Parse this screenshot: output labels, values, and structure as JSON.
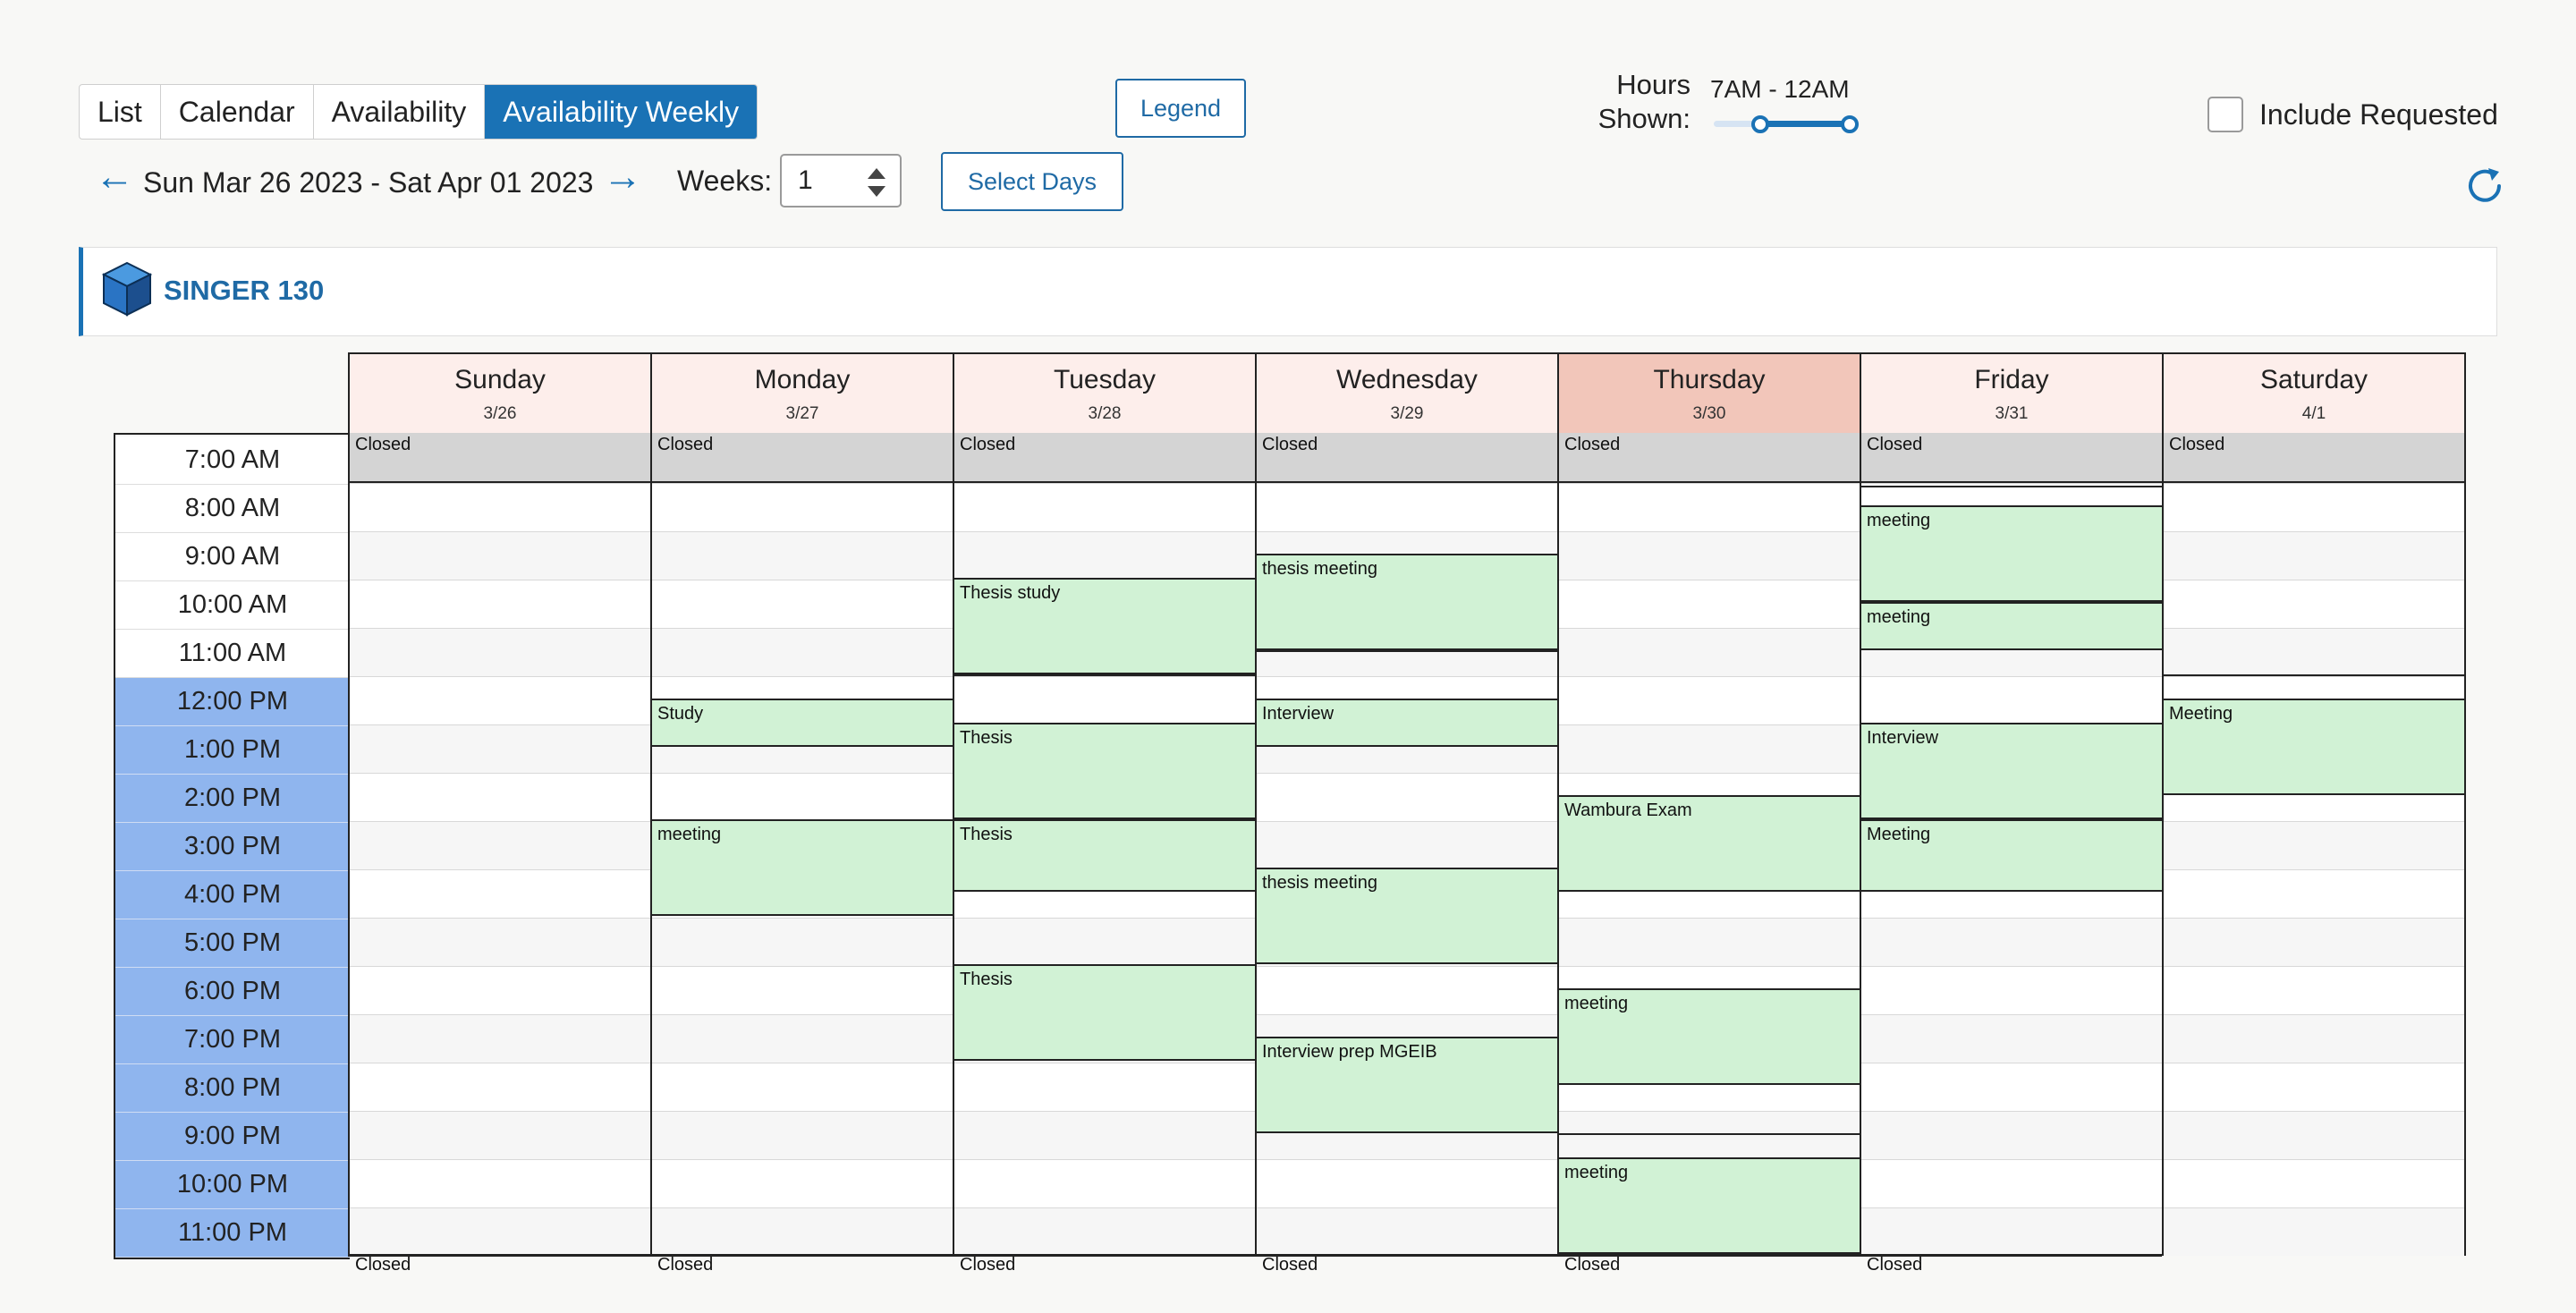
{
  "view_tabs": [
    "List",
    "Calendar",
    "Availability",
    "Availability Weekly"
  ],
  "active_tab": "Availability Weekly",
  "legend_label": "Legend",
  "hours": {
    "label_line1": "Hours",
    "label_line2": "Shown:",
    "range": "7AM - 12AM",
    "slider_start": 0.33,
    "slider_end": 1.0
  },
  "include_requested": {
    "label": "Include Requested",
    "checked": false
  },
  "nav": {
    "date_range": "Sun Mar 26 2023 - Sat Apr 01 2023",
    "prev_icon": "arrow-left-icon",
    "next_icon": "arrow-right-icon"
  },
  "weeks": {
    "label": "Weeks:",
    "value": "1"
  },
  "select_days_label": "Select Days",
  "refresh_icon": "refresh-icon",
  "resource": {
    "name": "SINGER 130",
    "icon": "cube-icon"
  },
  "times": [
    "7:00 AM",
    "8:00 AM",
    "9:00 AM",
    "10:00 AM",
    "11:00 AM",
    "12:00 PM",
    "1:00 PM",
    "2:00 PM",
    "3:00 PM",
    "4:00 PM",
    "5:00 PM",
    "6:00 PM",
    "7:00 PM",
    "8:00 PM",
    "9:00 PM",
    "10:00 PM",
    "11:00 PM"
  ],
  "closed_label": "Closed",
  "days": [
    {
      "name": "Sunday",
      "date": "3/26",
      "today": false,
      "closed_below": true,
      "events": []
    },
    {
      "name": "Monday",
      "date": "3/27",
      "today": false,
      "closed_below": true,
      "events": [
        {
          "title": "Study",
          "start": 12.5,
          "end": 13.5
        },
        {
          "title": "meeting",
          "start": 15.0,
          "end": 17.0
        }
      ]
    },
    {
      "name": "Tuesday",
      "date": "3/28",
      "today": false,
      "closed_below": true,
      "events": [
        {
          "title": "Thesis study",
          "start": 10.0,
          "end": 12.0
        },
        {
          "title": "Thesis",
          "start": 13.0,
          "end": 15.0
        },
        {
          "title": "Thesis",
          "start": 15.0,
          "end": 16.5
        },
        {
          "title": "Thesis",
          "start": 18.0,
          "end": 20.0
        }
      ],
      "gaps": [
        12.0
      ]
    },
    {
      "name": "Wednesday",
      "date": "3/29",
      "today": false,
      "closed_below": true,
      "events": [
        {
          "title": "thesis meeting",
          "start": 9.5,
          "end": 11.5
        },
        {
          "title": "Interview",
          "start": 12.5,
          "end": 13.5
        },
        {
          "title": "thesis meeting",
          "start": 16.0,
          "end": 18.0
        },
        {
          "title": "Interview prep MGEIB",
          "start": 19.5,
          "end": 21.5
        }
      ],
      "gaps": [
        11.5
      ]
    },
    {
      "name": "Thursday",
      "date": "3/30",
      "today": true,
      "closed_below": true,
      "events": [
        {
          "title": "Wambura Exam",
          "start": 14.5,
          "end": 16.5
        },
        {
          "title": "meeting",
          "start": 18.5,
          "end": 20.5
        },
        {
          "title": "meeting",
          "start": 22.0,
          "end": 24.0
        }
      ],
      "gaps": [
        21.5
      ]
    },
    {
      "name": "Friday",
      "date": "3/31",
      "today": false,
      "closed_below": true,
      "events": [
        {
          "title": "meeting",
          "start": 8.5,
          "end": 10.5
        },
        {
          "title": "meeting",
          "start": 10.5,
          "end": 11.5
        },
        {
          "title": "Interview",
          "start": 13.0,
          "end": 15.0
        },
        {
          "title": "Meeting",
          "start": 15.0,
          "end": 16.5
        }
      ],
      "gaps": [
        8.1
      ]
    },
    {
      "name": "Saturday",
      "date": "4/1",
      "today": false,
      "closed_below": false,
      "events": [
        {
          "title": "Meeting",
          "start": 12.5,
          "end": 14.5
        }
      ],
      "gaps": [
        12.0
      ]
    }
  ]
}
